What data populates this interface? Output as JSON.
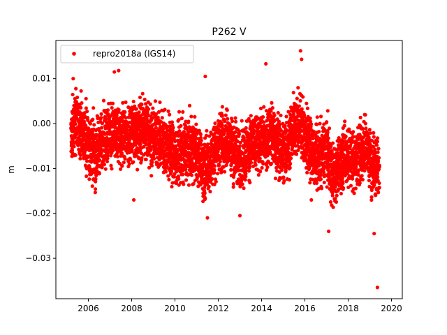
{
  "chart_data": {
    "type": "scatter",
    "title": "P262 V",
    "xlabel": "",
    "ylabel": "m",
    "xlim": [
      2004.5,
      2020.5
    ],
    "ylim": [
      -0.039,
      0.0185
    ],
    "xticks": [
      2006,
      2008,
      2010,
      2012,
      2014,
      2016,
      2018,
      2020
    ],
    "xtick_labels": [
      "2006",
      "2008",
      "2010",
      "2012",
      "2014",
      "2016",
      "2018",
      "2020"
    ],
    "yticks": [
      0.01,
      0.0,
      -0.01,
      -0.02,
      -0.03
    ],
    "ytick_labels": [
      "0.01",
      "0.00",
      "−0.01",
      "−0.02",
      "−0.03"
    ],
    "grid": false,
    "legend": {
      "position": "top-left"
    },
    "series": [
      {
        "name": "repro2018a (IGS14)",
        "color": "#ff0000",
        "marker": "circle",
        "data_range": [
          2005.2,
          2019.45
        ],
        "mean_profile": {
          "x": [
            2005.2,
            2005.5,
            2006.0,
            2006.3,
            2006.7,
            2007.0,
            2007.5,
            2008.0,
            2008.5,
            2009.0,
            2009.5,
            2010.0,
            2010.5,
            2011.0,
            2011.3,
            2011.7,
            2012.0,
            2012.5,
            2013.0,
            2013.5,
            2014.0,
            2014.5,
            2015.0,
            2015.5,
            2015.8,
            2016.2,
            2016.6,
            2017.0,
            2017.3,
            2017.8,
            2018.3,
            2018.8,
            2019.2,
            2019.45
          ],
          "y": [
            -0.002,
            0.0,
            -0.004,
            -0.007,
            -0.003,
            -0.002,
            -0.003,
            -0.002,
            -0.001,
            -0.003,
            -0.004,
            -0.007,
            -0.006,
            -0.006,
            -0.01,
            -0.008,
            -0.004,
            -0.004,
            -0.008,
            -0.005,
            -0.004,
            -0.002,
            -0.007,
            -0.001,
            0.0,
            -0.005,
            -0.008,
            -0.006,
            -0.012,
            -0.007,
            -0.008,
            -0.005,
            -0.01,
            -0.009
          ]
        },
        "outliers": [
          {
            "x": 2005.3,
            "y": 0.01
          },
          {
            "x": 2007.2,
            "y": 0.0115
          },
          {
            "x": 2007.4,
            "y": 0.0118
          },
          {
            "x": 2011.4,
            "y": 0.0105
          },
          {
            "x": 2014.2,
            "y": 0.0133
          },
          {
            "x": 2015.8,
            "y": 0.0162
          },
          {
            "x": 2015.85,
            "y": 0.0143
          },
          {
            "x": 2008.1,
            "y": -0.017
          },
          {
            "x": 2011.5,
            "y": -0.021
          },
          {
            "x": 2013.0,
            "y": -0.0205
          },
          {
            "x": 2016.3,
            "y": -0.017
          },
          {
            "x": 2017.1,
            "y": -0.024
          },
          {
            "x": 2019.2,
            "y": -0.0245
          },
          {
            "x": 2019.35,
            "y": -0.0365
          }
        ]
      }
    ]
  }
}
